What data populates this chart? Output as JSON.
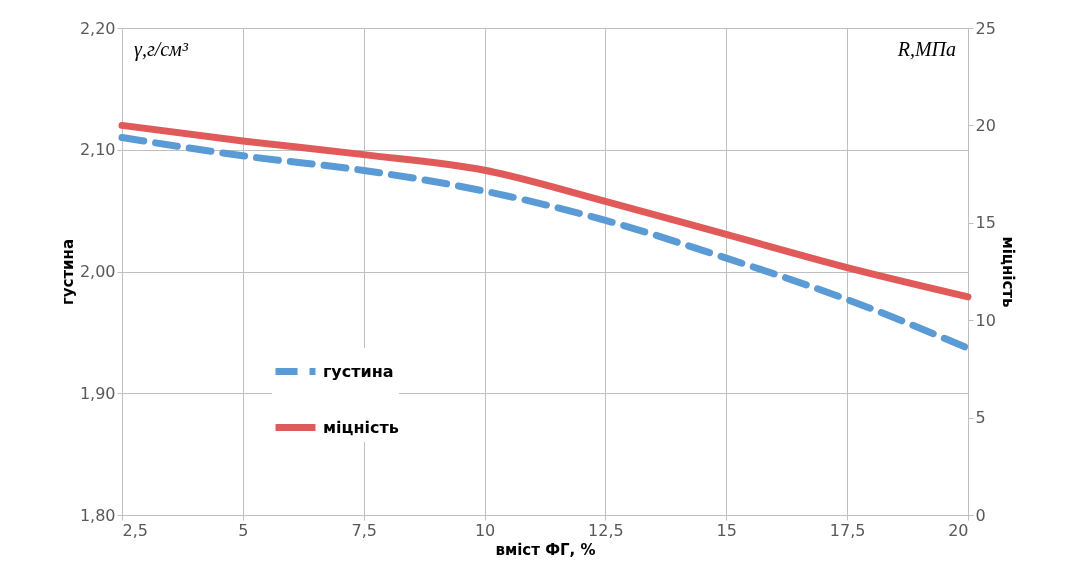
{
  "chart_data": {
    "type": "line",
    "xlabel": "вміст ФГ, %",
    "ylabel": "густина",
    "y2label": "міцність",
    "annotations": [
      "γ,г/см³",
      "R,МПа"
    ],
    "x": [
      2.5,
      5,
      7.5,
      10,
      12.5,
      15,
      17.5,
      20
    ],
    "series": [
      {
        "name": "густина",
        "color": "#5b9bd5",
        "line_style": "dashed",
        "values": [
          2.11,
          2.095,
          2.083,
          2.066,
          2.042,
          2.011,
          1.977,
          1.937
        ]
      },
      {
        "name": "міцність",
        "color": "#e05a5a",
        "line_style": "solid",
        "axis": "y2",
        "values": [
          20.0,
          19.2,
          18.5,
          17.7,
          16.1,
          14.4,
          12.7,
          11.2
        ]
      }
    ],
    "xlim": [
      2.5,
      20
    ],
    "xticks": [
      {
        "value": 2.5,
        "label": "2,5"
      },
      5,
      {
        "value": 7.5,
        "label": "7,5"
      },
      10,
      {
        "value": 12.5,
        "label": "12,5"
      },
      15,
      {
        "value": 17.5,
        "label": "17,5"
      },
      20
    ],
    "ylim": [
      1.8,
      2.2
    ],
    "yticks": [
      {
        "value": 1.8,
        "label": "1,80"
      },
      {
        "value": 1.9,
        "label": "1,90"
      },
      {
        "value": 2.0,
        "label": "2,00"
      },
      {
        "value": 2.1,
        "label": "2,10"
      },
      {
        "value": 2.2,
        "label": "2,20"
      }
    ],
    "y2lim": [
      0,
      25
    ],
    "y2ticks": [
      0,
      5,
      10,
      15,
      20,
      25
    ],
    "grid": true,
    "legend": "left"
  }
}
